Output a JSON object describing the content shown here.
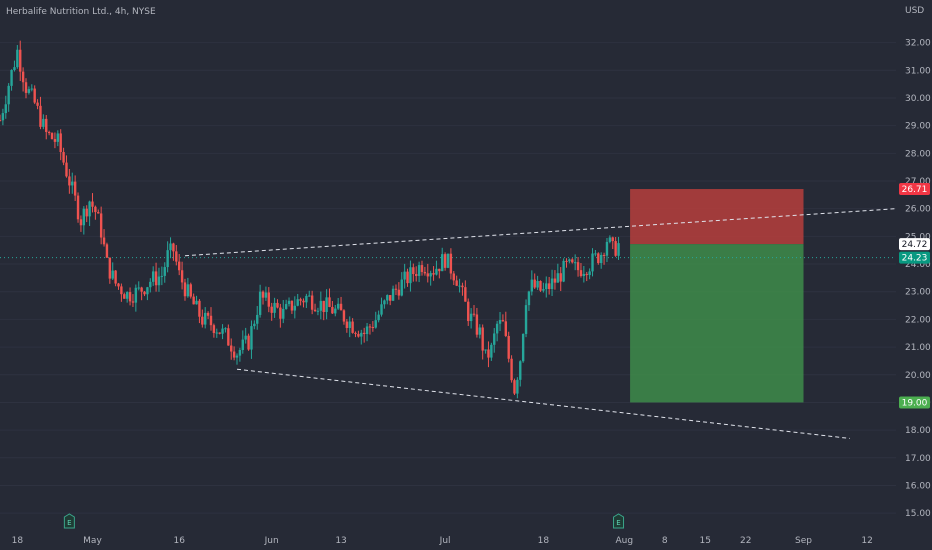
{
  "header": {
    "title": "Herbalife Nutrition Ltd., 4h, NYSE"
  },
  "chart_data": {
    "type": "candlestick",
    "title": "Herbalife Nutrition Ltd., 4h, NYSE",
    "currency_label": "USD",
    "ylim": [
      14.5,
      32.6
    ],
    "y_ticks": [
      15,
      16,
      17,
      18,
      19,
      20,
      21,
      22,
      23,
      24,
      25,
      26,
      27,
      28,
      29,
      30,
      31,
      32
    ],
    "y_tick_labels": [
      "15.00",
      "16.00",
      "17.00",
      "18.00",
      "19.00",
      "20.00",
      "21.00",
      "22.00",
      "23.00",
      "24.00",
      "25.00",
      "26.00",
      "27.00",
      "28.00",
      "29.00",
      "30.00",
      "31.00",
      "32.00"
    ],
    "x_ticks": [
      {
        "label": "18",
        "day": 0
      },
      {
        "label": "May",
        "day": 13
      },
      {
        "label": "16",
        "day": 28
      },
      {
        "label": "Jun",
        "day": 44
      },
      {
        "label": "13",
        "day": 56
      },
      {
        "label": "Jul",
        "day": 74
      },
      {
        "label": "18",
        "day": 91
      },
      {
        "label": "Aug",
        "day": 105
      },
      {
        "label": "8",
        "day": 112
      },
      {
        "label": "15",
        "day": 119
      },
      {
        "label": "22",
        "day": 126
      },
      {
        "label": "Sep",
        "day": 136
      },
      {
        "label": "12",
        "day": 147
      }
    ],
    "x_domain_days": [
      -3,
      152
    ],
    "price_path": [
      [
        -3,
        29.2
      ],
      [
        -1.5,
        30.5
      ],
      [
        0,
        31.7
      ],
      [
        1.5,
        30.4
      ],
      [
        3,
        29.8
      ],
      [
        5,
        28.7
      ],
      [
        7,
        28.4
      ],
      [
        9,
        27.0
      ],
      [
        11,
        25.6
      ],
      [
        12.5,
        26.3
      ],
      [
        13.5,
        25.9
      ],
      [
        14.5,
        25.2
      ],
      [
        15.5,
        24.0
      ],
      [
        17,
        23.3
      ],
      [
        19,
        22.9
      ],
      [
        21,
        23.0
      ],
      [
        23,
        23.4
      ],
      [
        25,
        23.6
      ],
      [
        26,
        24.3
      ],
      [
        27,
        24.5
      ],
      [
        28,
        23.6
      ],
      [
        30,
        22.7
      ],
      [
        32,
        22.0
      ],
      [
        34,
        21.8
      ],
      [
        36,
        21.4
      ],
      [
        38,
        20.8
      ],
      [
        40,
        21.2
      ],
      [
        41,
        22.0
      ],
      [
        42,
        22.8
      ],
      [
        44,
        22.5
      ],
      [
        46,
        22.2
      ],
      [
        48,
        22.6
      ],
      [
        50,
        22.8
      ],
      [
        52,
        22.6
      ],
      [
        54,
        22.4
      ],
      [
        56,
        22.2
      ],
      [
        58,
        21.8
      ],
      [
        60,
        21.5
      ],
      [
        62,
        22.0
      ],
      [
        64,
        22.7
      ],
      [
        66,
        23.2
      ],
      [
        68,
        23.6
      ],
      [
        70,
        24.0
      ],
      [
        72,
        23.8
      ],
      [
        74,
        24.2
      ],
      [
        76,
        23.5
      ],
      [
        78,
        22.2
      ],
      [
        80,
        21.5
      ],
      [
        81,
        20.6
      ],
      [
        82,
        20.9
      ],
      [
        83,
        21.8
      ],
      [
        84,
        21.8
      ],
      [
        85,
        20.6
      ],
      [
        86,
        19.5
      ],
      [
        87,
        20.6
      ],
      [
        88,
        22.8
      ],
      [
        89,
        23.2
      ],
      [
        91,
        23.0
      ],
      [
        93,
        23.4
      ],
      [
        95,
        23.9
      ],
      [
        97,
        23.8
      ],
      [
        99,
        24.0
      ],
      [
        101,
        24.4
      ],
      [
        102,
        24.9
      ],
      [
        103,
        24.5
      ],
      [
        104,
        24.7
      ]
    ],
    "last_price": 24.23,
    "position": {
      "type": "short",
      "entry": 24.72,
      "stop": 26.71,
      "target": 19.0,
      "start_day": 106,
      "end_day": 136
    },
    "trendlines": [
      {
        "name": "",
        "style": "dashed",
        "points": [
          [
            29,
            24.3
          ],
          [
            152,
            26.0
          ]
        ]
      },
      {
        "name": "",
        "style": "dashed",
        "points": [
          [
            38,
            20.2
          ],
          [
            144,
            17.7
          ]
        ]
      }
    ],
    "earnings_markers": [
      {
        "label": "E",
        "day": 9
      },
      {
        "label": "E",
        "day": 104
      }
    ],
    "price_tags": [
      {
        "value": 26.71,
        "label": "26.71",
        "color": "#f23645",
        "text_color": "#ffffff"
      },
      {
        "value": 24.72,
        "label": "24.72",
        "color": "#ffffff",
        "text_color": "#131722"
      },
      {
        "value": 24.23,
        "label": "24.23",
        "color": "#089981",
        "text_color": "#ffffff"
      },
      {
        "value": 19.0,
        "label": "19.00",
        "color": "#4caf50",
        "text_color": "#ffffff"
      }
    ],
    "colors": {
      "up": "#26a69a",
      "down": "#ef5350",
      "stop_zone": "#c4403c",
      "target_zone": "#3e8c4a",
      "background": "#262a36"
    }
  }
}
